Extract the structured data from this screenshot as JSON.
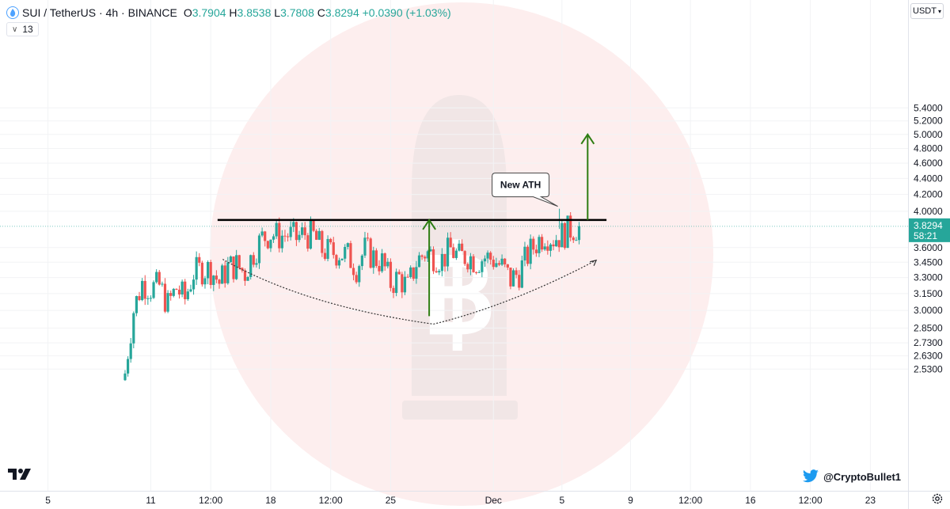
{
  "header": {
    "title": "SUI / TetherUS · 4h · BINANCE",
    "o_label": "O",
    "o_value": "3.7904",
    "h_label": "H",
    "h_value": "3.8538",
    "l_label": "L",
    "l_value": "3.7808",
    "c_label": "C",
    "c_value": "3.8294",
    "change": "+0.0390 (+1.03%)"
  },
  "indicator_badge": "13",
  "currency": "USDT",
  "price_tag": {
    "price": "3.8294",
    "countdown": "58:21",
    "color": "#26a69a"
  },
  "credit": "@CryptoBullet1",
  "colors": {
    "up": "#26a69a",
    "down": "#ef5350",
    "arrow": "#2e7d12",
    "twitter": "#1d9bf0"
  },
  "chart_data": {
    "type": "candlestick",
    "title": "SUI / TetherUS · 4h · BINANCE",
    "y_scale": "log",
    "ylim": [
      2.5,
      5.6
    ],
    "y_ticks": [
      "5.4000",
      "5.2000",
      "5.0000",
      "4.8000",
      "4.6000",
      "4.4000",
      "4.2000",
      "4.0000",
      "3.6000",
      "3.4500",
      "3.3000",
      "3.1500",
      "3.0000",
      "2.8500",
      "2.7300",
      "2.6300",
      "2.5300"
    ],
    "y_tick_values": [
      5.4,
      5.2,
      5.0,
      4.8,
      4.6,
      4.4,
      4.2,
      4.0,
      3.6,
      3.45,
      3.3,
      3.15,
      3.0,
      2.85,
      2.73,
      2.63,
      2.53
    ],
    "x_ticks": [
      "5",
      "11",
      "12:00",
      "18",
      "12:00",
      "25",
      "Dec",
      "5",
      "9",
      "12:00",
      "16",
      "12:00",
      "23"
    ],
    "x_tick_days": [
      5,
      11,
      14.5,
      18,
      21.5,
      25,
      31,
      35,
      39,
      42.5,
      46,
      49.5,
      53
    ],
    "x_range_days": [
      2.2,
      55.2
    ],
    "last_price": 3.8294,
    "candles_smoothed": [
      [
        9.5,
        2.5
      ],
      [
        10.0,
        3.0
      ],
      [
        10.5,
        3.25
      ],
      [
        11.0,
        3.2
      ],
      [
        11.5,
        3.22
      ],
      [
        12.0,
        3.05
      ],
      [
        12.5,
        3.2
      ],
      [
        13.0,
        3.1
      ],
      [
        13.5,
        3.35
      ],
      [
        14.0,
        3.38
      ],
      [
        14.5,
        3.38
      ],
      [
        15.0,
        3.25
      ],
      [
        15.5,
        3.4
      ],
      [
        16.0,
        3.42
      ],
      [
        16.5,
        3.35
      ],
      [
        17.0,
        3.55
      ],
      [
        17.5,
        3.7
      ],
      [
        18.0,
        3.75
      ],
      [
        18.5,
        3.72
      ],
      [
        19.0,
        3.74
      ],
      [
        19.5,
        3.7
      ],
      [
        20.0,
        3.75
      ],
      [
        20.5,
        3.72
      ],
      [
        21.0,
        3.58
      ],
      [
        21.5,
        3.55
      ],
      [
        22.0,
        3.55
      ],
      [
        22.5,
        3.52
      ],
      [
        23.0,
        3.4
      ],
      [
        23.5,
        3.58
      ],
      [
        24.0,
        3.5
      ],
      [
        24.5,
        3.45
      ],
      [
        25.0,
        3.25
      ],
      [
        25.5,
        3.3
      ],
      [
        26.0,
        3.2
      ],
      [
        26.5,
        3.45
      ],
      [
        27.0,
        3.55
      ],
      [
        27.5,
        3.52
      ],
      [
        28.0,
        3.48
      ],
      [
        28.5,
        3.58
      ],
      [
        29.0,
        3.5
      ],
      [
        29.5,
        3.52
      ],
      [
        30.0,
        3.46
      ],
      [
        30.5,
        3.5
      ],
      [
        31.0,
        3.48
      ],
      [
        31.5,
        3.4
      ],
      [
        32.0,
        3.28
      ],
      [
        32.5,
        3.35
      ],
      [
        33.0,
        3.52
      ],
      [
        33.5,
        3.65
      ],
      [
        34.0,
        3.75
      ],
      [
        34.5,
        3.7
      ],
      [
        35.0,
        3.74
      ],
      [
        35.5,
        3.8
      ],
      [
        36.0,
        3.83
      ]
    ],
    "resistance_price": 3.9,
    "annotations": [
      {
        "text": "New ATH",
        "day": 34.85,
        "price": 4.03
      }
    ],
    "arrows": [
      {
        "day": 27.25,
        "from": 2.95,
        "to": 3.9
      },
      {
        "day": 36.5,
        "from": 3.9,
        "to": 5.0
      }
    ],
    "cup_curve": [
      [
        15.2,
        3.48
      ],
      [
        20,
        3.18
      ],
      [
        27.5,
        2.95
      ],
      [
        32,
        3.08
      ],
      [
        37,
        3.47
      ]
    ]
  }
}
